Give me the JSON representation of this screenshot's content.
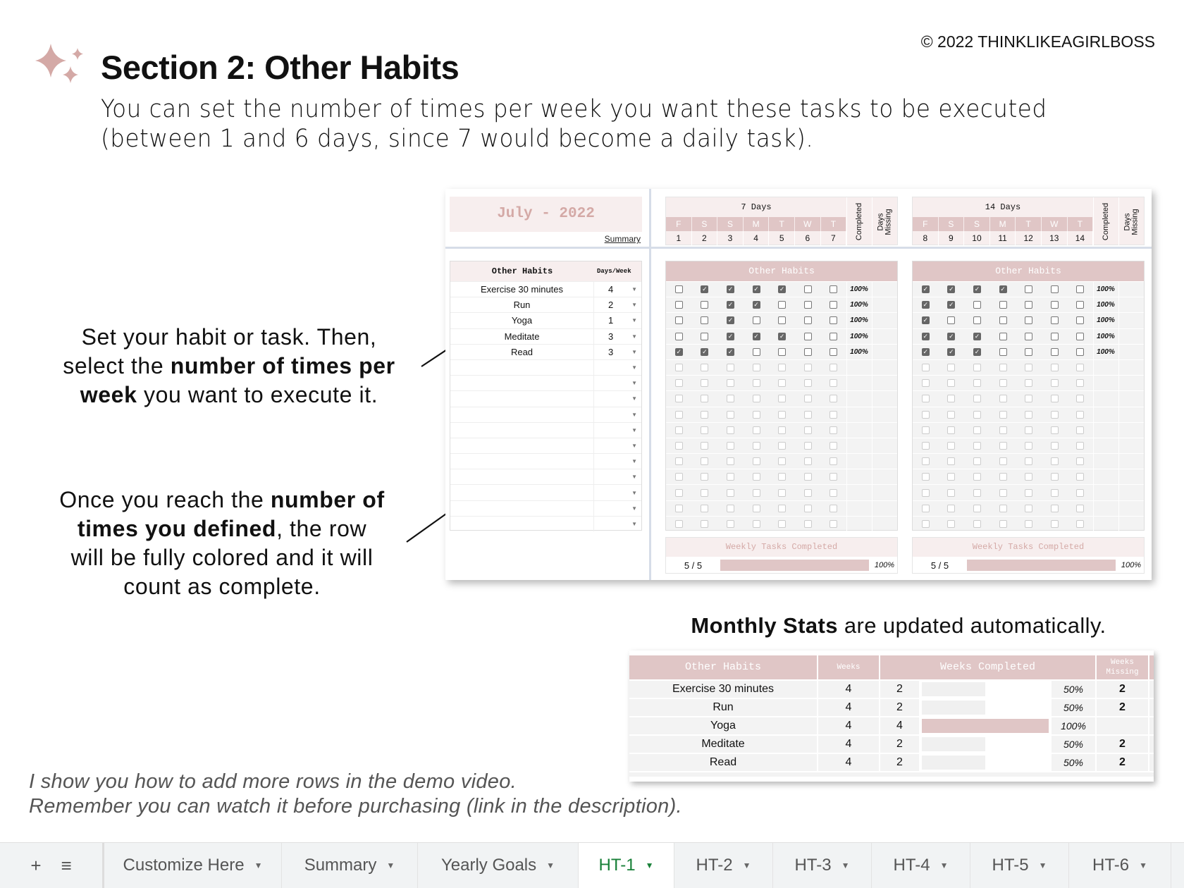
{
  "header": {
    "title": "Section 2: Other Habits",
    "copyright": "©  2022 THINKLIKEAGIRLBOSS",
    "subtitle_lines": [
      "You can set the number of times per week you want these tasks to be executed",
      "(between 1 and 6 days, since 7 would become a daily task)."
    ]
  },
  "notes": {
    "note1": [
      [
        "Set your habit or task. Then,",
        ""
      ],
      [
        "select the ",
        "number of times per"
      ],
      [
        "",
        "week",
        " you want to execute it."
      ]
    ],
    "note2": [
      [
        "Once you reach the ",
        "number of"
      ],
      [
        "",
        "times you defined",
        ", the row"
      ],
      [
        "will be fully colored and it will"
      ],
      [
        "count as complete."
      ]
    ]
  },
  "sheet": {
    "month": "July - 2022",
    "summary_link": "Summary",
    "habits_header": "Other Habits",
    "days_week_header": "Days/Week",
    "habits": [
      {
        "name": "Exercise 30 minutes",
        "days": "4"
      },
      {
        "name": "Run",
        "days": "2"
      },
      {
        "name": "Yoga",
        "days": "1"
      },
      {
        "name": "Meditate",
        "days": "3"
      },
      {
        "name": "Read",
        "days": "3"
      }
    ],
    "empty_rows": 11,
    "completed_label": "Completed",
    "missing_label": "Days Missing",
    "weeks": [
      {
        "range": "7 Days",
        "letters": [
          "F",
          "S",
          "S",
          "M",
          "T",
          "W",
          "T"
        ],
        "dates": [
          "1",
          "2",
          "3",
          "4",
          "5",
          "6",
          "7"
        ],
        "grid_title": "Other Habits",
        "checks": [
          [
            0,
            1,
            1,
            1,
            1,
            0,
            0
          ],
          [
            0,
            0,
            1,
            1,
            0,
            0,
            0
          ],
          [
            0,
            0,
            1,
            0,
            0,
            0,
            0
          ],
          [
            0,
            0,
            1,
            1,
            1,
            0,
            0
          ],
          [
            1,
            1,
            1,
            0,
            0,
            0,
            0
          ]
        ],
        "completed": [
          "100%",
          "100%",
          "100%",
          "100%",
          "100%"
        ],
        "weekly_title": "Weekly Tasks Completed",
        "weekly_count": "5 / 5",
        "weekly_pct": "100%",
        "weekly_fraction": 1.0
      },
      {
        "range": "14 Days",
        "letters": [
          "F",
          "S",
          "S",
          "M",
          "T",
          "W",
          "T"
        ],
        "dates": [
          "8",
          "9",
          "10",
          "11",
          "12",
          "13",
          "14"
        ],
        "grid_title": "Other Habits",
        "checks": [
          [
            1,
            1,
            1,
            1,
            0,
            0,
            0
          ],
          [
            1,
            1,
            0,
            0,
            0,
            0,
            0
          ],
          [
            1,
            0,
            0,
            0,
            0,
            0,
            0
          ],
          [
            1,
            1,
            1,
            0,
            0,
            0,
            0
          ],
          [
            1,
            1,
            1,
            0,
            0,
            0,
            0
          ]
        ],
        "completed": [
          "100%",
          "100%",
          "100%",
          "100%",
          "100%"
        ],
        "weekly_title": "Weekly Tasks Completed",
        "weekly_count": "5 / 5",
        "weekly_pct": "100%",
        "weekly_fraction": 1.0
      }
    ]
  },
  "monthly": {
    "caption_bold": "Monthly Stats",
    "caption_rest": " are updated automatically.",
    "headers": {
      "habit": "Other Habits",
      "weeks": "Weeks",
      "completed": "Weeks Completed",
      "missing": "Weeks Missing"
    },
    "rows": [
      {
        "habit": "Exercise 30 minutes",
        "weeks": "4",
        "completed": "2",
        "pct": "50%",
        "fraction": 0.5,
        "missing": "2"
      },
      {
        "habit": "Run",
        "weeks": "4",
        "completed": "2",
        "pct": "50%",
        "fraction": 0.5,
        "missing": "2"
      },
      {
        "habit": "Yoga",
        "weeks": "4",
        "completed": "4",
        "pct": "100%",
        "fraction": 1.0,
        "missing": ""
      },
      {
        "habit": "Meditate",
        "weeks": "4",
        "completed": "2",
        "pct": "50%",
        "fraction": 0.5,
        "missing": "2"
      },
      {
        "habit": "Read",
        "weeks": "4",
        "completed": "2",
        "pct": "50%",
        "fraction": 0.5,
        "missing": "2"
      }
    ]
  },
  "footer": [
    "I show you how to add more rows in the demo video.",
    "Remember you can watch it before purchasing (link in the description)."
  ],
  "tabs": {
    "add": "+",
    "all": "≡",
    "items": [
      {
        "label": "Customize Here"
      },
      {
        "label": "Summary"
      },
      {
        "label": "Yearly Goals"
      },
      {
        "label": "HT-1",
        "active": true
      },
      {
        "label": "HT-2"
      },
      {
        "label": "HT-3"
      },
      {
        "label": "HT-4"
      },
      {
        "label": "HT-5"
      },
      {
        "label": "HT-6"
      }
    ]
  },
  "colors": {
    "accent_pink": "#e0c6c6",
    "light_pink": "#f7eeee",
    "month_text": "#d4a9a6",
    "active_tab": "#188038",
    "sparkle": "#d4a9a6"
  },
  "icons": [
    "sparkles-icon",
    "dropdown-caret-icon",
    "checkbox-icon",
    "arrow-icon",
    "add-sheet-icon",
    "all-sheets-icon"
  ]
}
